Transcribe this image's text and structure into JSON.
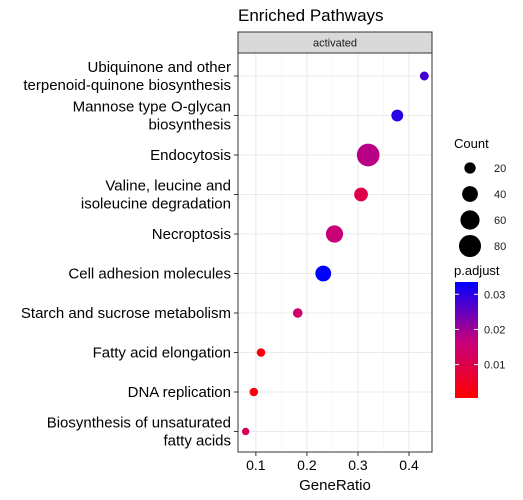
{
  "chart_data": {
    "type": "scatter",
    "title": "Enriched Pathways",
    "facet_label": "activated",
    "xlabel": "GeneRatio",
    "ylabel": "",
    "xlim": [
      0.065,
      0.445
    ],
    "x_ticks": [
      0.1,
      0.2,
      0.3,
      0.4
    ],
    "x_tick_labels": [
      "0.1",
      "0.2",
      "0.3",
      "0.4"
    ],
    "grid": true,
    "points": [
      {
        "pathway": "Ubiquinone and other terpenoid-quinone biosynthesis",
        "gene_ratio": 0.43,
        "count": 12,
        "p_adjust": 0.028
      },
      {
        "pathway": "Mannose type O-glycan biosynthesis",
        "gene_ratio": 0.377,
        "count": 22,
        "p_adjust": 0.03
      },
      {
        "pathway": "Endocytosis",
        "gene_ratio": 0.32,
        "count": 85,
        "p_adjust": 0.018
      },
      {
        "pathway": "Valine, leucine and isoleucine degradation",
        "gene_ratio": 0.306,
        "count": 30,
        "p_adjust": 0.01
      },
      {
        "pathway": "Necroptosis",
        "gene_ratio": 0.254,
        "count": 48,
        "p_adjust": 0.016
      },
      {
        "pathway": "Cell adhesion molecules",
        "gene_ratio": 0.232,
        "count": 40,
        "p_adjust": 0.034
      },
      {
        "pathway": "Starch and sucrose metabolism",
        "gene_ratio": 0.182,
        "count": 14,
        "p_adjust": 0.014
      },
      {
        "pathway": "Fatty acid elongation",
        "gene_ratio": 0.11,
        "count": 11,
        "p_adjust": 0.002
      },
      {
        "pathway": "DNA replication",
        "gene_ratio": 0.096,
        "count": 11,
        "p_adjust": 0.002
      },
      {
        "pathway": "Biosynthesis of unsaturated fatty acids",
        "gene_ratio": 0.08,
        "count": 8,
        "p_adjust": 0.012
      }
    ],
    "y_labels": [
      [
        "Ubiquinone and other",
        "terpenoid-quinone biosynthesis"
      ],
      [
        "Mannose type O-glycan",
        "biosynthesis"
      ],
      [
        "Endocytosis"
      ],
      [
        "Valine, leucine and",
        "isoleucine degradation"
      ],
      [
        "Necroptosis"
      ],
      [
        "Cell adhesion molecules"
      ],
      [
        "Starch and sucrose metabolism"
      ],
      [
        "Fatty acid elongation"
      ],
      [
        "DNA replication"
      ],
      [
        "Biosynthesis of unsaturated",
        "fatty acids"
      ]
    ],
    "legend_placement": "right",
    "size_legend": {
      "title": "Count",
      "values": [
        20,
        40,
        60,
        80
      ],
      "labels": [
        "20",
        "40",
        "60",
        "80"
      ]
    },
    "color_legend": {
      "title": "p.adjust",
      "min": 0.0005,
      "max": 0.0335,
      "ticks": [
        0.01,
        0.02,
        0.03
      ],
      "tick_labels": [
        "0.01",
        "0.02",
        "0.03"
      ],
      "low_color": "#ff0000",
      "high_color": "#0000ff"
    },
    "colors": {
      "panel_border": "#333333",
      "strip_fill": "#d9d9d9",
      "grid": "#ebebeb"
    }
  }
}
